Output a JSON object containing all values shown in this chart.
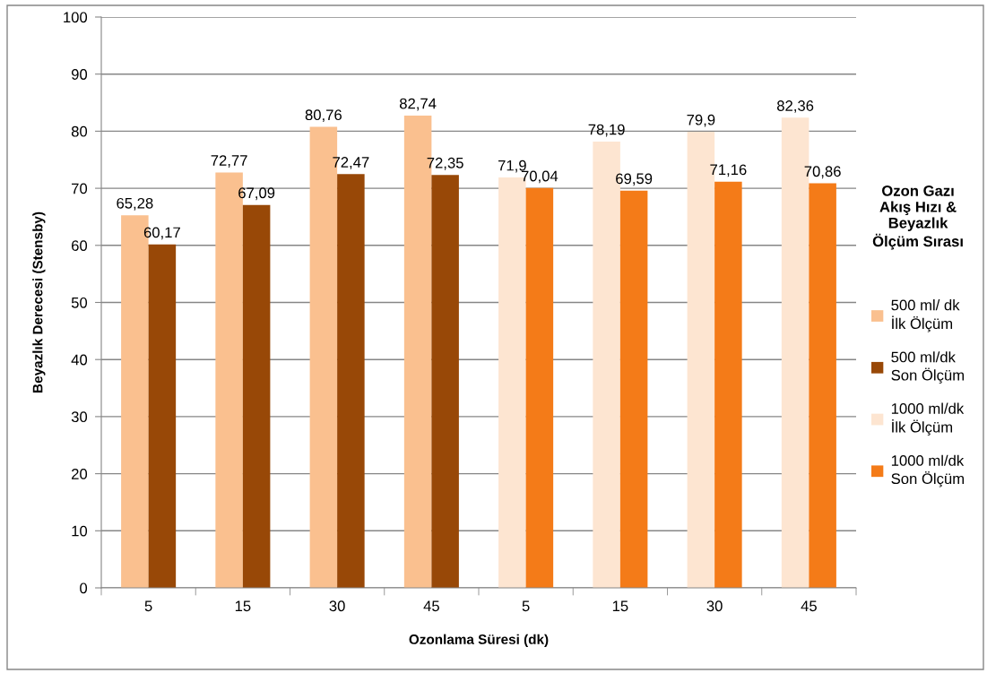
{
  "chart_data": {
    "type": "bar",
    "xlabel": "Ozonlama Süresi (dk)",
    "ylabel": "Beyazlık Derecesi (Stensby)",
    "legend_title": "Ozon Gazı\nAkış Hızı &\nBeyazlık\nÖlçüm Sırası",
    "categories": [
      "5",
      "15",
      "30",
      "45",
      "5",
      "15",
      "30",
      "45"
    ],
    "series": [
      {
        "name": "500 ml/ dk\nİlk Ölçüm",
        "color": "#fac08f",
        "values": [
          65.28,
          72.77,
          80.76,
          82.74,
          null,
          null,
          null,
          null
        ],
        "value_labels": [
          "65,28",
          "72,77",
          "80,76",
          "82,74",
          null,
          null,
          null,
          null
        ]
      },
      {
        "name": "500 ml/dk\nSon Ölçüm",
        "color": "#984807",
        "values": [
          60.17,
          67.09,
          72.47,
          72.35,
          null,
          null,
          null,
          null
        ],
        "value_labels": [
          "60,17",
          "67,09",
          "72,47",
          "72,35",
          null,
          null,
          null,
          null
        ]
      },
      {
        "name": "1000 ml/dk\nİlk Ölçüm",
        "color": "#fde5d1",
        "values": [
          null,
          null,
          null,
          null,
          71.9,
          78.19,
          79.9,
          82.36
        ],
        "value_labels": [
          null,
          null,
          null,
          null,
          "71,9",
          "78,19",
          "79,9",
          "82,36"
        ]
      },
      {
        "name": "1000 ml/dk\nSon Ölçüm",
        "color": "#f47b18",
        "values": [
          null,
          null,
          null,
          null,
          70.04,
          69.59,
          71.16,
          70.86
        ],
        "value_labels": [
          null,
          null,
          null,
          null,
          "70,04",
          "69,59",
          "71,16",
          "70,86"
        ]
      }
    ],
    "ylim": [
      0,
      100
    ],
    "yticks": [
      0,
      10,
      20,
      30,
      40,
      50,
      60,
      70,
      80,
      90,
      100
    ],
    "grid": "y",
    "legend": "right"
  }
}
